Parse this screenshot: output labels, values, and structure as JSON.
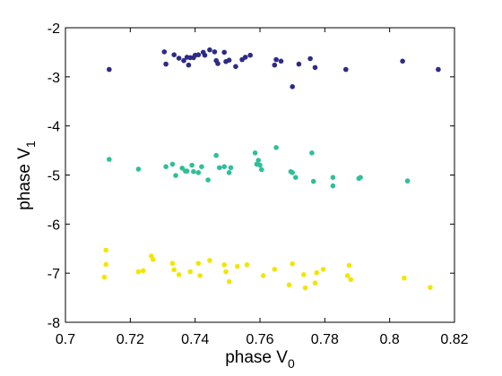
{
  "chart_data": {
    "type": "scatter",
    "xlabel": "phase V",
    "xlabel_subscript": "0",
    "ylabel": "phase V",
    "ylabel_subscript": "1",
    "xlim": [
      0.7,
      0.82
    ],
    "ylim": [
      -8,
      -2
    ],
    "xticks": [
      "0.7",
      "0.72",
      "0.74",
      "0.76",
      "0.78",
      "0.8",
      "0.82"
    ],
    "yticks": [
      "-8",
      "-7",
      "-6",
      "-5",
      "-4",
      "-3",
      "-2"
    ],
    "grid": false,
    "legend": "none",
    "series": [
      {
        "color": "#2e2a86",
        "points": [
          [
            0.7135,
            -2.85
          ],
          [
            0.7305,
            -2.49
          ],
          [
            0.731,
            -2.74
          ],
          [
            0.7335,
            -2.55
          ],
          [
            0.735,
            -2.62
          ],
          [
            0.7365,
            -2.67
          ],
          [
            0.7375,
            -2.6
          ],
          [
            0.738,
            -2.76
          ],
          [
            0.7385,
            -2.61
          ],
          [
            0.7395,
            -2.61
          ],
          [
            0.74,
            -2.56
          ],
          [
            0.741,
            -2.55
          ],
          [
            0.7425,
            -2.5
          ],
          [
            0.743,
            -2.56
          ],
          [
            0.7445,
            -2.45
          ],
          [
            0.746,
            -2.49
          ],
          [
            0.7465,
            -2.67
          ],
          [
            0.747,
            -2.73
          ],
          [
            0.749,
            -2.5
          ],
          [
            0.7495,
            -2.69
          ],
          [
            0.7505,
            -2.66
          ],
          [
            0.7525,
            -2.79
          ],
          [
            0.7545,
            -2.65
          ],
          [
            0.7555,
            -2.6
          ],
          [
            0.757,
            -2.56
          ],
          [
            0.7645,
            -2.76
          ],
          [
            0.765,
            -2.65
          ],
          [
            0.7665,
            -2.68
          ],
          [
            0.77,
            -3.2
          ],
          [
            0.772,
            -2.74
          ],
          [
            0.7755,
            -2.63
          ],
          [
            0.777,
            -2.81
          ],
          [
            0.7865,
            -2.85
          ],
          [
            0.804,
            -2.68
          ],
          [
            0.815,
            -2.85
          ]
        ]
      },
      {
        "color": "#2fbf9a",
        "points": [
          [
            0.7135,
            -4.68
          ],
          [
            0.7225,
            -4.88
          ],
          [
            0.731,
            -4.83
          ],
          [
            0.733,
            -4.78
          ],
          [
            0.734,
            -5.01
          ],
          [
            0.736,
            -4.86
          ],
          [
            0.737,
            -4.92
          ],
          [
            0.7375,
            -4.92
          ],
          [
            0.739,
            -4.8
          ],
          [
            0.7395,
            -4.93
          ],
          [
            0.741,
            -4.95
          ],
          [
            0.742,
            -4.83
          ],
          [
            0.744,
            -5.1
          ],
          [
            0.7465,
            -4.6
          ],
          [
            0.7475,
            -4.85
          ],
          [
            0.749,
            -4.83
          ],
          [
            0.7505,
            -4.95
          ],
          [
            0.751,
            -4.85
          ],
          [
            0.7585,
            -4.55
          ],
          [
            0.759,
            -4.78
          ],
          [
            0.7595,
            -4.7
          ],
          [
            0.76,
            -4.8
          ],
          [
            0.7605,
            -4.89
          ],
          [
            0.765,
            -4.44
          ],
          [
            0.7695,
            -4.93
          ],
          [
            0.77,
            -4.95
          ],
          [
            0.771,
            -5.05
          ],
          [
            0.776,
            -4.55
          ],
          [
            0.7765,
            -5.13
          ],
          [
            0.7825,
            -5.05
          ],
          [
            0.7825,
            -5.22
          ],
          [
            0.7905,
            -5.07
          ],
          [
            0.791,
            -5.05
          ],
          [
            0.8055,
            -5.12
          ]
        ]
      },
      {
        "color": "#f2e600",
        "points": [
          [
            0.712,
            -7.08
          ],
          [
            0.7125,
            -6.82
          ],
          [
            0.7125,
            -6.53
          ],
          [
            0.7225,
            -6.97
          ],
          [
            0.724,
            -6.95
          ],
          [
            0.7265,
            -6.65
          ],
          [
            0.727,
            -6.72
          ],
          [
            0.733,
            -6.8
          ],
          [
            0.7335,
            -6.93
          ],
          [
            0.735,
            -7.03
          ],
          [
            0.7385,
            -6.97
          ],
          [
            0.741,
            -6.8
          ],
          [
            0.7415,
            -7.05
          ],
          [
            0.7445,
            -6.74
          ],
          [
            0.749,
            -6.83
          ],
          [
            0.7495,
            -6.97
          ],
          [
            0.7505,
            -7.17
          ],
          [
            0.753,
            -6.86
          ],
          [
            0.756,
            -6.83
          ],
          [
            0.761,
            -7.05
          ],
          [
            0.7645,
            -6.92
          ],
          [
            0.769,
            -7.24
          ],
          [
            0.77,
            -6.81
          ],
          [
            0.7735,
            -7.03
          ],
          [
            0.774,
            -7.3
          ],
          [
            0.777,
            -7.2
          ],
          [
            0.7775,
            -6.99
          ],
          [
            0.7795,
            -6.92
          ],
          [
            0.787,
            -7.05
          ],
          [
            0.7875,
            -6.84
          ],
          [
            0.788,
            -7.13
          ],
          [
            0.8045,
            -7.1
          ],
          [
            0.8125,
            -7.29
          ]
        ]
      }
    ]
  }
}
